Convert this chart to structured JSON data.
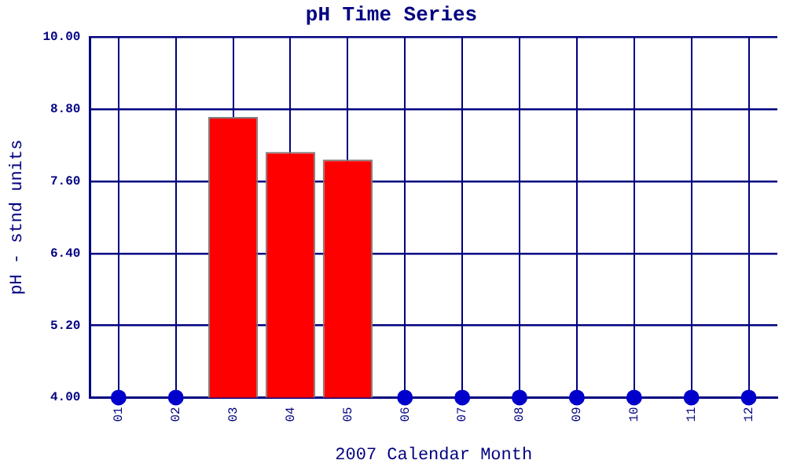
{
  "chart_data": {
    "type": "bar",
    "title": "pH Time Series",
    "xlabel": "2007 Calendar Month",
    "ylabel": "pH - stnd units",
    "categories": [
      "01",
      "02",
      "03",
      "04",
      "05",
      "06",
      "07",
      "08",
      "09",
      "10",
      "11",
      "12"
    ],
    "series": [
      {
        "color": "#ff0000",
        "values": [
          null,
          null,
          8.67,
          8.09,
          7.96,
          null,
          null,
          null,
          null,
          null,
          null,
          null
        ]
      },
      {
        "type": "scatter",
        "color": "#0000cc",
        "x": [
          "01",
          "02",
          "06",
          "07",
          "08",
          "09",
          "10",
          "11",
          "12"
        ],
        "values": [
          4,
          4,
          4,
          4,
          4,
          4,
          4,
          4,
          4
        ]
      }
    ],
    "ylim": [
      4,
      10
    ],
    "yticks": [
      {
        "value": 4,
        "label": "4.00"
      },
      {
        "value": 5.2,
        "label": "5.20"
      },
      {
        "value": 6.4,
        "label": "6.40"
      },
      {
        "value": 7.6,
        "label": "7.60"
      },
      {
        "value": 8.8,
        "label": "8.80"
      },
      {
        "value": 10,
        "label": "10.00"
      }
    ],
    "grid": true,
    "legend": false,
    "marker": "circle"
  }
}
